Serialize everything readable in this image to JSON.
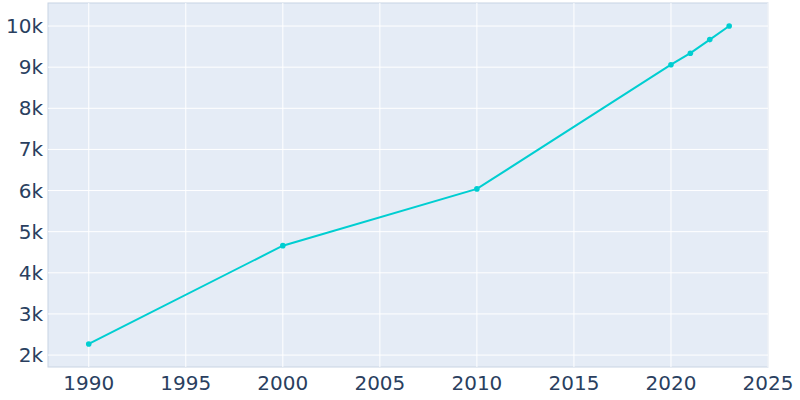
{
  "chart_data": {
    "type": "line",
    "x": [
      1990,
      2000,
      2010,
      2020,
      2021,
      2022,
      2023
    ],
    "values": [
      2270,
      4660,
      6040,
      9060,
      9340,
      9670,
      10000
    ],
    "color": "#00ced1",
    "marker": "circle",
    "xlim": [
      1987.9,
      2025
    ],
    "ylim": [
      1710,
      10560
    ],
    "xticks": [
      1990,
      1995,
      2000,
      2005,
      2010,
      2015,
      2020,
      2025
    ],
    "yticks": [
      {
        "value": 2000,
        "label": "2k"
      },
      {
        "value": 3000,
        "label": "3k"
      },
      {
        "value": 4000,
        "label": "4k"
      },
      {
        "value": 5000,
        "label": "5k"
      },
      {
        "value": 6000,
        "label": "6k"
      },
      {
        "value": 7000,
        "label": "7k"
      },
      {
        "value": 8000,
        "label": "8k"
      },
      {
        "value": 9000,
        "label": "9k"
      },
      {
        "value": 10000,
        "label": "10k"
      }
    ],
    "grid": true
  }
}
